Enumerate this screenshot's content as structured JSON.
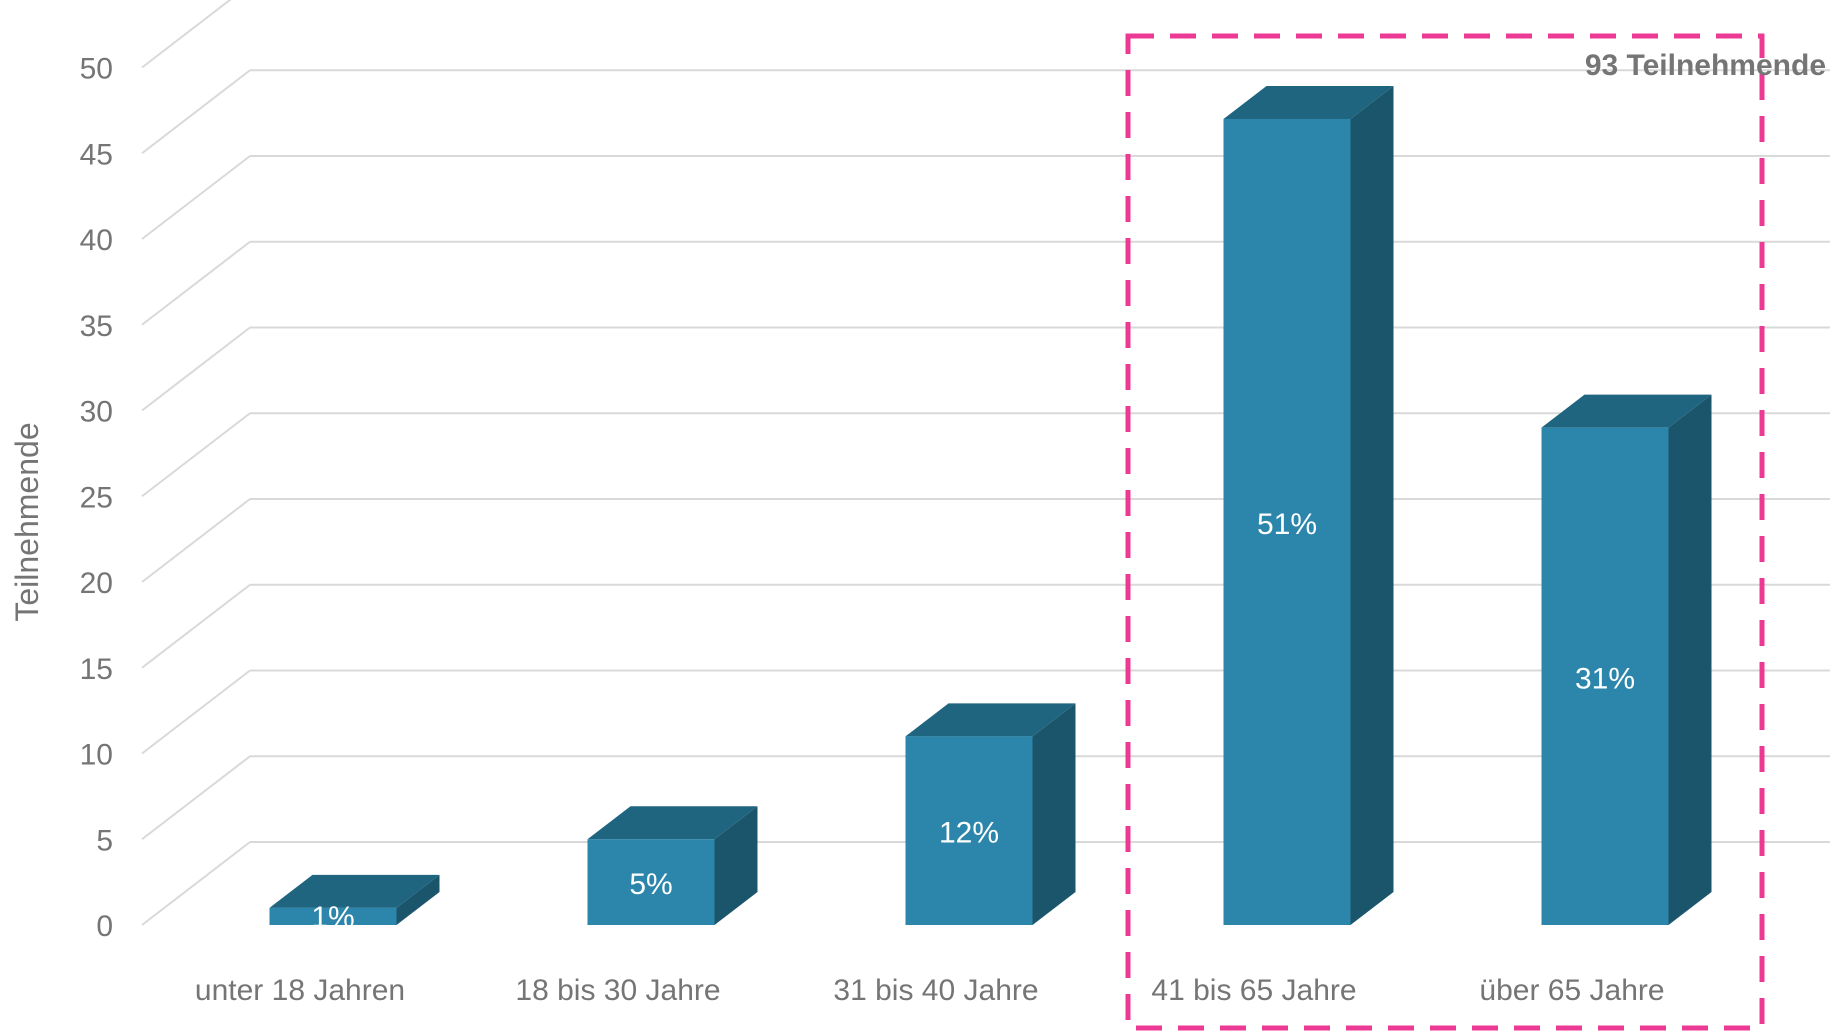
{
  "chart_data": {
    "type": "bar",
    "title": "",
    "xlabel": "",
    "ylabel": "Teilnehmende",
    "ylim": [
      0,
      50
    ],
    "yticks": [
      0,
      5,
      10,
      15,
      20,
      25,
      30,
      35,
      40,
      45,
      50
    ],
    "grid": true,
    "categories": [
      "unter 18 Jahren",
      "18 bis 30 Jahre",
      "31 bis 40 Jahre",
      "41 bis 65 Jahre",
      "über 65 Jahre"
    ],
    "values": [
      1,
      5,
      11,
      47,
      29
    ],
    "data_labels": [
      "1%",
      "5%",
      "12%",
      "51%",
      "31%"
    ],
    "highlight": {
      "categories": [
        "41 bis 65 Jahre",
        "über 65 Jahre"
      ],
      "label": "93 Teilnehmende",
      "color": "#ec3a94"
    },
    "colors": {
      "bar_front": "#2c86ab",
      "bar_top": "#1f6580",
      "bar_side": "#1b556c",
      "grid": "#d9d9d9",
      "text": "#757575"
    }
  }
}
